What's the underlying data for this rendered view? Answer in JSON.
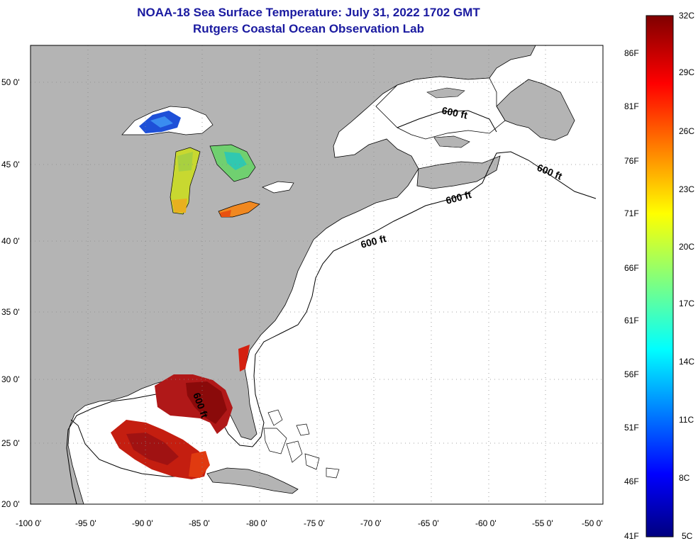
{
  "header": {
    "title": "NOAA-18 Sea Surface Temperature:  July 31, 2022 1702 GMT",
    "subtitle": "Rutgers Coastal Ocean Observation Lab"
  },
  "map": {
    "lat_ticks": [
      "50 0'",
      "45 0'",
      "40 0'",
      "35 0'",
      "30 0'",
      "25 0'",
      "20 0'"
    ],
    "lon_ticks": [
      "-100 0'",
      "-95 0'",
      "-90 0'",
      "-85 0'",
      "-80 0'",
      "-75 0'",
      "-70 0'",
      "-65 0'",
      "-60 0'",
      "-55 0'",
      "-50 0'"
    ],
    "contour_labels": [
      "600 ft",
      "600 ft",
      "600 ft",
      "600 ft",
      "600 ft"
    ],
    "land_color": "#b4b4b4",
    "ocean_color": "#ffffff"
  },
  "colorbar": {
    "celsius": [
      "32C",
      "29C",
      "26C",
      "23C",
      "20C",
      "17C",
      "14C",
      "11C",
      "8C",
      "5C"
    ],
    "fahrenheit": [
      "86F",
      "81F",
      "76F",
      "71F",
      "66F",
      "61F",
      "56F",
      "51F",
      "46F",
      "41F"
    ]
  }
}
